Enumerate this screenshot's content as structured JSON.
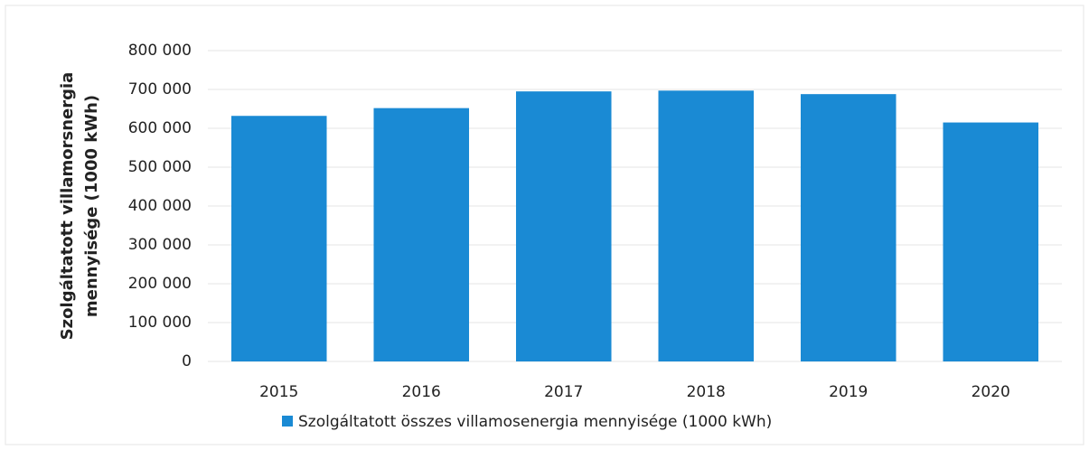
{
  "chart_data": {
    "type": "bar",
    "y_label": [
      "Szolgáltatott villamorsnergia",
      "mennyisége (1000 kWh)"
    ],
    "categories": [
      "2015",
      "2016",
      "2017",
      "2018",
      "2019",
      "2020"
    ],
    "series": [
      {
        "name": "Szolgáltatott összes villamosenergia mennyisége (1000 kWh)",
        "color": "#1a8ad4",
        "values": [
          632000,
          652000,
          695000,
          697000,
          688000,
          615000
        ]
      }
    ],
    "ylim": [
      0,
      800000
    ],
    "yticks": [
      0,
      {
        "value": 100000,
        "label": "100 000"
      },
      {
        "value": 200000,
        "label": "200 000"
      },
      {
        "value": 300000,
        "label": "300 000"
      },
      {
        "value": 400000,
        "label": "400 000"
      },
      {
        "value": 500000,
        "label": "500 000"
      },
      {
        "value": 600000,
        "label": "600 000"
      },
      {
        "value": 700000,
        "label": "700 000"
      },
      {
        "value": 800000,
        "label": "800 000"
      }
    ],
    "grid": true,
    "legend": "bottom"
  }
}
